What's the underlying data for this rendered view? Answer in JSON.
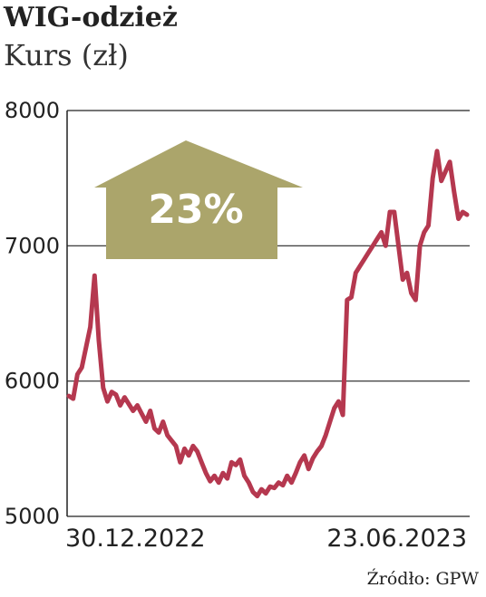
{
  "header": {
    "title": "WIG-odzież",
    "subtitle": "Kurs (zł)"
  },
  "source": "Źródło: GPW",
  "callout": {
    "text": "23%",
    "color": "#aba56b"
  },
  "colors": {
    "line": "#b5384f",
    "grid": "#222222",
    "axis": "#222222"
  },
  "chart_data": {
    "type": "line",
    "title": "WIG-odzież",
    "ylabel": "Kurs (zł)",
    "ylim": [
      5000,
      8000
    ],
    "yticks": [
      5000,
      6000,
      7000,
      8000
    ],
    "xtick_labels": [
      "30.12.2022",
      "23.06.2023"
    ],
    "grid": true,
    "x_unit": "trading session (index from 30.12.2022)",
    "series": [
      {
        "values": [
          5890,
          5870,
          6050,
          6100,
          6250,
          6400,
          6780,
          6300,
          5950,
          5850,
          5920,
          5900,
          5820,
          5880,
          5830,
          5780,
          5820,
          5760,
          5700,
          5780,
          5650,
          5620,
          5700,
          5600,
          5560,
          5520,
          5400,
          5500,
          5450,
          5520,
          5480,
          5400,
          5320,
          5260,
          5300,
          5250,
          5320,
          5280,
          5400,
          5380,
          5420,
          5300,
          5250,
          5180,
          5150,
          5200,
          5170,
          5220,
          5210,
          5250,
          5230,
          5300,
          5250,
          5320,
          5400,
          5450,
          5350,
          5430,
          5480,
          5520,
          5600,
          5700,
          5800,
          5850,
          5750,
          6600,
          6620,
          6800,
          6850,
          6900,
          6950,
          7000,
          7050,
          7100,
          7000,
          7250,
          7250,
          7000,
          6750,
          6800,
          6650,
          6600,
          7000,
          7100,
          7150,
          7500,
          7700,
          7480,
          7550,
          7620,
          7400,
          7200,
          7250,
          7230
        ]
      }
    ]
  }
}
